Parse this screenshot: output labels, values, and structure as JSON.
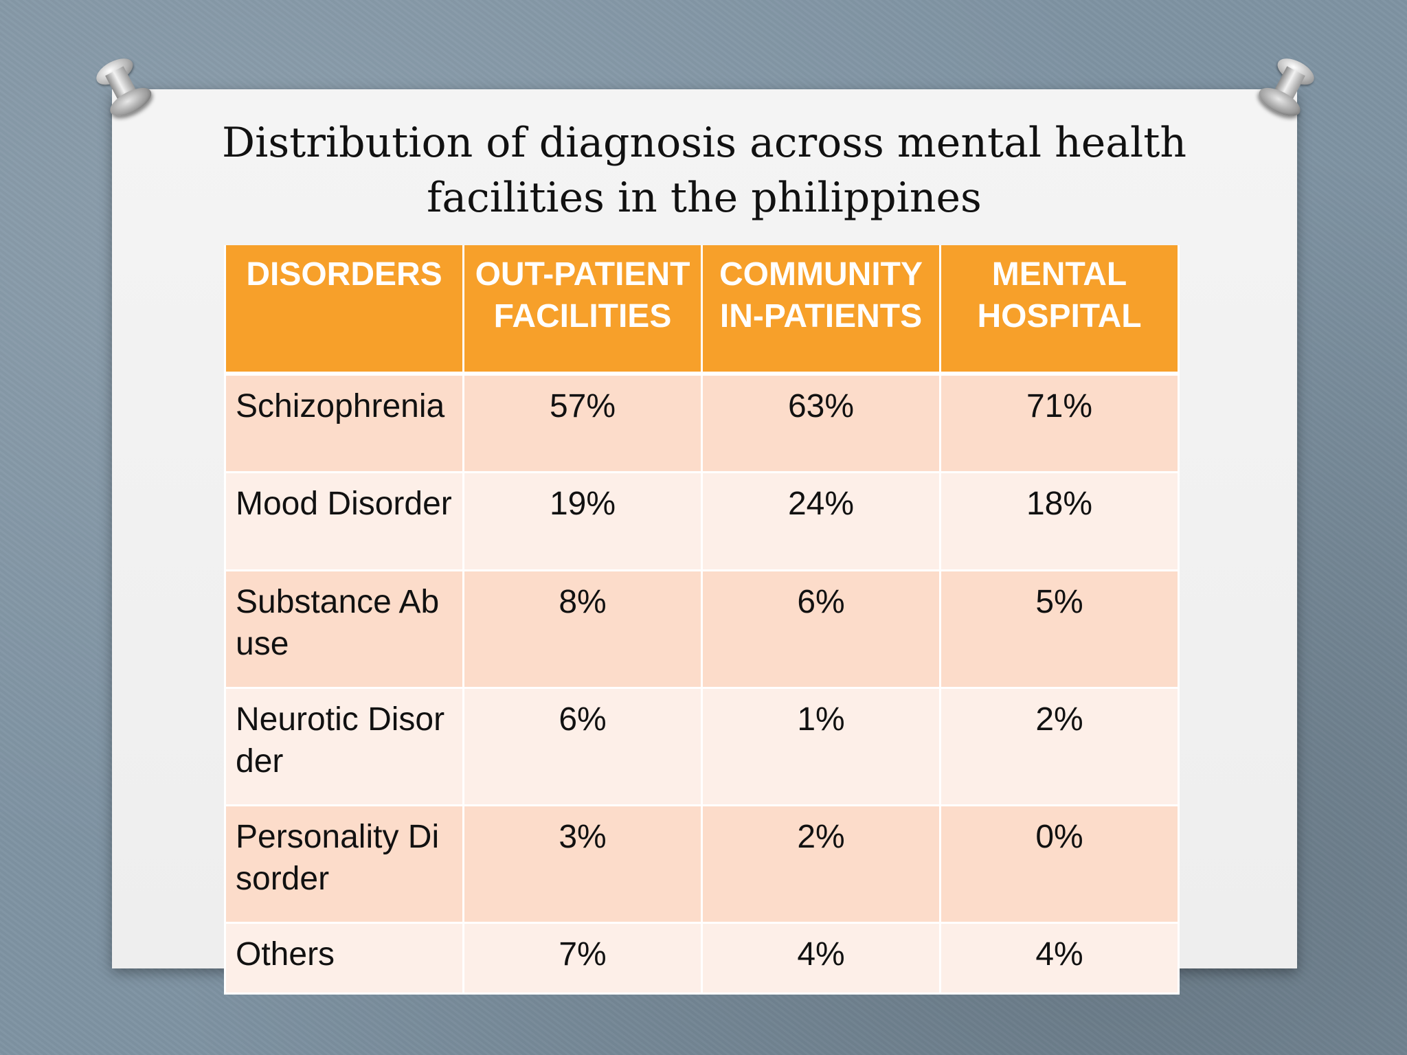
{
  "title": {
    "line1": "Distribution of diagnosis across mental health",
    "line2": "facilities in the philippines"
  },
  "table": {
    "headers": [
      "DISORDERS",
      "OUT-PATIENT FACILITIES",
      "COMMUNITY IN-PATIENTS",
      "MENTAL HOSPITAL"
    ],
    "rows": [
      [
        "Schizophrenia",
        "57%",
        "63%",
        "71%"
      ],
      [
        "Mood Disorder",
        "19%",
        "24%",
        "18%"
      ],
      [
        "Substance Abuse",
        "8%",
        "6%",
        "5%"
      ],
      [
        "Neurotic Disorder",
        "6%",
        "1%",
        "2%"
      ],
      [
        "Personality Disorder",
        "3%",
        "2%",
        "0%"
      ],
      [
        "Others",
        "7%",
        "4%",
        "4%"
      ]
    ]
  },
  "colors": {
    "header": "#f7a02a",
    "row_odd": "#fcdcca",
    "row_even": "#fdefe8",
    "background": "#7f93a3"
  }
}
